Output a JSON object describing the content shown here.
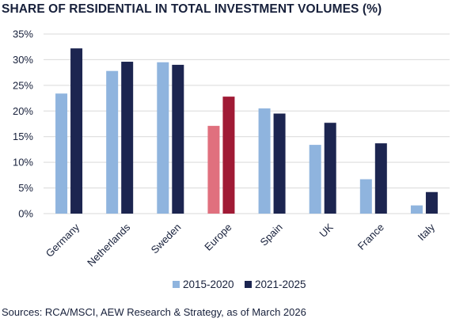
{
  "chart_data": {
    "type": "bar",
    "title": "SHARE OF RESIDENTIAL IN TOTAL INVESTMENT VOLUMES (%)",
    "source": "Sources: RCA/MSCI, AEW Research & Strategy, as of March 2026",
    "categories": [
      "Germany",
      "Netherlands",
      "Sweden",
      "Europe",
      "Spain",
      "UK",
      "France",
      "Italy"
    ],
    "series": [
      {
        "name": "2015-2020",
        "color": "#8fb4de",
        "highlight_color": "#e0707e",
        "values": [
          23.4,
          27.8,
          29.5,
          17.1,
          20.5,
          13.4,
          6.7,
          1.6
        ]
      },
      {
        "name": "2021-2025",
        "color": "#1c2550",
        "highlight_color": "#a01a35",
        "values": [
          32.2,
          29.6,
          29.0,
          22.8,
          19.5,
          17.7,
          13.7,
          4.2
        ]
      }
    ],
    "highlight_category": "Europe",
    "ylim": [
      0,
      35
    ],
    "yticks": [
      "0%",
      "5%",
      "10%",
      "15%",
      "20%",
      "25%",
      "30%",
      "35%"
    ],
    "ytick_values": [
      0,
      5,
      10,
      15,
      20,
      25,
      30,
      35
    ],
    "grid": true,
    "legend_position": "bottom-center",
    "xlabel": "",
    "ylabel": ""
  }
}
